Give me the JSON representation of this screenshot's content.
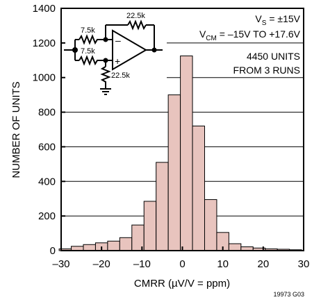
{
  "chart_data": {
    "type": "bar",
    "xlabel": "CMRR (µV/V = ppm)",
    "ylabel": "NUMBER OF UNITS",
    "xlim": [
      -30,
      30
    ],
    "ylim": [
      0,
      1400
    ],
    "x_ticks": [
      "–30",
      "–20",
      "–10",
      "0",
      "10",
      "20",
      "30"
    ],
    "y_ticks": [
      "0",
      "200",
      "400",
      "600",
      "800",
      "1000",
      "1200",
      "1400"
    ],
    "grid": "horizontal",
    "bin_width": 3,
    "bins": [
      {
        "x": -29,
        "y": 10
      },
      {
        "x": -26,
        "y": 25
      },
      {
        "x": -23,
        "y": 35
      },
      {
        "x": -20,
        "y": 45
      },
      {
        "x": -17,
        "y": 55
      },
      {
        "x": -14,
        "y": 75
      },
      {
        "x": -11,
        "y": 148
      },
      {
        "x": -8,
        "y": 285
      },
      {
        "x": -5,
        "y": 510
      },
      {
        "x": -2,
        "y": 900
      },
      {
        "x": 1,
        "y": 1125
      },
      {
        "x": 4,
        "y": 720
      },
      {
        "x": 7,
        "y": 295
      },
      {
        "x": 10,
        "y": 105
      },
      {
        "x": 13,
        "y": 40
      },
      {
        "x": 16,
        "y": 22
      },
      {
        "x": 19,
        "y": 15
      },
      {
        "x": 22,
        "y": 10
      },
      {
        "x": 25,
        "y": 8
      },
      {
        "x": 28,
        "y": 5
      }
    ],
    "bar_color": "#e8c4be",
    "annotations": {
      "vs": {
        "main": "V",
        "sub": "S",
        "rest": " = ±15V"
      },
      "vcm": {
        "main": "V",
        "sub": "CM",
        "rest": " = –15V  TO +17.6V"
      },
      "units_line1": "4450 UNITS",
      "units_line2": "FROM 3 RUNS"
    },
    "schematic": {
      "r_feedback": "22.5k",
      "r_in_top": "7.5k",
      "r_in_bottom": "7.5k",
      "r_ground": "22.5k",
      "minus_sign": "–",
      "plus_sign": "+"
    },
    "figure_id": "19973 G03"
  }
}
